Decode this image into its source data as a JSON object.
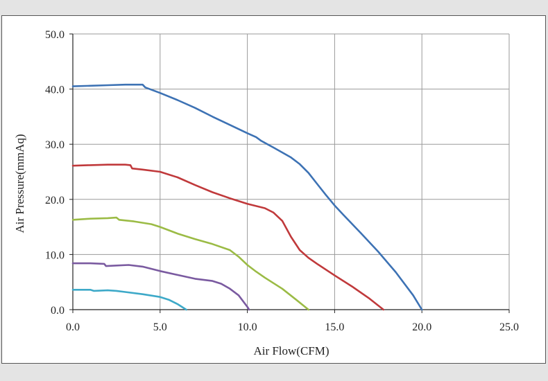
{
  "chart_data": {
    "type": "line",
    "title": "",
    "xlabel": "Air Flow(CFM)",
    "ylabel": "Air Pressure(mmAq)",
    "xlim": [
      0,
      25
    ],
    "ylim": [
      0,
      50
    ],
    "x_ticks": [
      "0.0",
      "5.0",
      "10.0",
      "15.0",
      "20.0",
      "25.0"
    ],
    "y_ticks": [
      "0.0",
      "10.0",
      "20.0",
      "30.0",
      "40.0",
      "50.0"
    ],
    "grid": true,
    "legend": "none",
    "series": [
      {
        "color": "#3d72b4",
        "points": [
          [
            0.0,
            40.5
          ],
          [
            1.0,
            40.6
          ],
          [
            2.0,
            40.7
          ],
          [
            3.0,
            40.8
          ],
          [
            4.0,
            40.8
          ],
          [
            4.15,
            40.3
          ],
          [
            5.0,
            39.3
          ],
          [
            6.0,
            38.0
          ],
          [
            7.0,
            36.6
          ],
          [
            8.0,
            35.0
          ],
          [
            9.0,
            33.5
          ],
          [
            10.0,
            32.0
          ],
          [
            10.5,
            31.3
          ],
          [
            10.8,
            30.6
          ],
          [
            11.5,
            29.4
          ],
          [
            12.5,
            27.6
          ],
          [
            13.0,
            26.4
          ],
          [
            13.5,
            24.8
          ],
          [
            14.0,
            22.8
          ],
          [
            14.5,
            20.8
          ],
          [
            15.0,
            18.9
          ],
          [
            15.5,
            17.2
          ],
          [
            16.5,
            13.9
          ],
          [
            17.5,
            10.5
          ],
          [
            18.5,
            6.8
          ],
          [
            19.5,
            2.6
          ],
          [
            20.0,
            0.0
          ]
        ]
      },
      {
        "color": "#c0393b",
        "points": [
          [
            0.0,
            26.1
          ],
          [
            1.0,
            26.2
          ],
          [
            2.0,
            26.3
          ],
          [
            3.0,
            26.3
          ],
          [
            3.3,
            26.2
          ],
          [
            3.4,
            25.6
          ],
          [
            4.0,
            25.4
          ],
          [
            5.0,
            25.0
          ],
          [
            6.0,
            24.0
          ],
          [
            7.0,
            22.6
          ],
          [
            8.0,
            21.3
          ],
          [
            9.0,
            20.2
          ],
          [
            10.0,
            19.2
          ],
          [
            11.0,
            18.4
          ],
          [
            11.5,
            17.6
          ],
          [
            12.0,
            16.1
          ],
          [
            12.5,
            13.2
          ],
          [
            13.0,
            10.8
          ],
          [
            13.5,
            9.4
          ],
          [
            14.0,
            8.3
          ],
          [
            15.0,
            6.2
          ],
          [
            16.0,
            4.2
          ],
          [
            17.0,
            2.0
          ],
          [
            17.8,
            0.0
          ]
        ]
      },
      {
        "color": "#9bbb45",
        "points": [
          [
            0.0,
            16.3
          ],
          [
            1.0,
            16.5
          ],
          [
            2.0,
            16.6
          ],
          [
            2.5,
            16.7
          ],
          [
            2.65,
            16.3
          ],
          [
            3.5,
            16.0
          ],
          [
            4.5,
            15.5
          ],
          [
            5.0,
            15.0
          ],
          [
            6.0,
            13.8
          ],
          [
            7.0,
            12.8
          ],
          [
            8.0,
            11.9
          ],
          [
            9.0,
            10.8
          ],
          [
            9.5,
            9.6
          ],
          [
            10.0,
            8.1
          ],
          [
            10.5,
            6.9
          ],
          [
            11.0,
            5.8
          ],
          [
            12.0,
            3.8
          ],
          [
            12.8,
            1.8
          ],
          [
            13.5,
            0.0
          ]
        ]
      },
      {
        "color": "#7a5aa0",
        "points": [
          [
            0.0,
            8.4
          ],
          [
            1.0,
            8.4
          ],
          [
            1.8,
            8.3
          ],
          [
            1.9,
            7.9
          ],
          [
            2.5,
            8.0
          ],
          [
            3.2,
            8.1
          ],
          [
            4.0,
            7.8
          ],
          [
            5.0,
            7.0
          ],
          [
            6.0,
            6.3
          ],
          [
            7.0,
            5.6
          ],
          [
            8.0,
            5.2
          ],
          [
            8.5,
            4.7
          ],
          [
            9.0,
            3.8
          ],
          [
            9.5,
            2.6
          ],
          [
            10.0,
            0.5
          ],
          [
            10.1,
            0.0
          ]
        ]
      },
      {
        "color": "#3da9c8",
        "points": [
          [
            0.0,
            3.6
          ],
          [
            1.0,
            3.6
          ],
          [
            1.2,
            3.4
          ],
          [
            2.0,
            3.5
          ],
          [
            2.5,
            3.4
          ],
          [
            3.0,
            3.2
          ],
          [
            4.0,
            2.8
          ],
          [
            5.0,
            2.3
          ],
          [
            5.5,
            1.8
          ],
          [
            6.0,
            1.0
          ],
          [
            6.5,
            0.0
          ]
        ]
      }
    ]
  }
}
